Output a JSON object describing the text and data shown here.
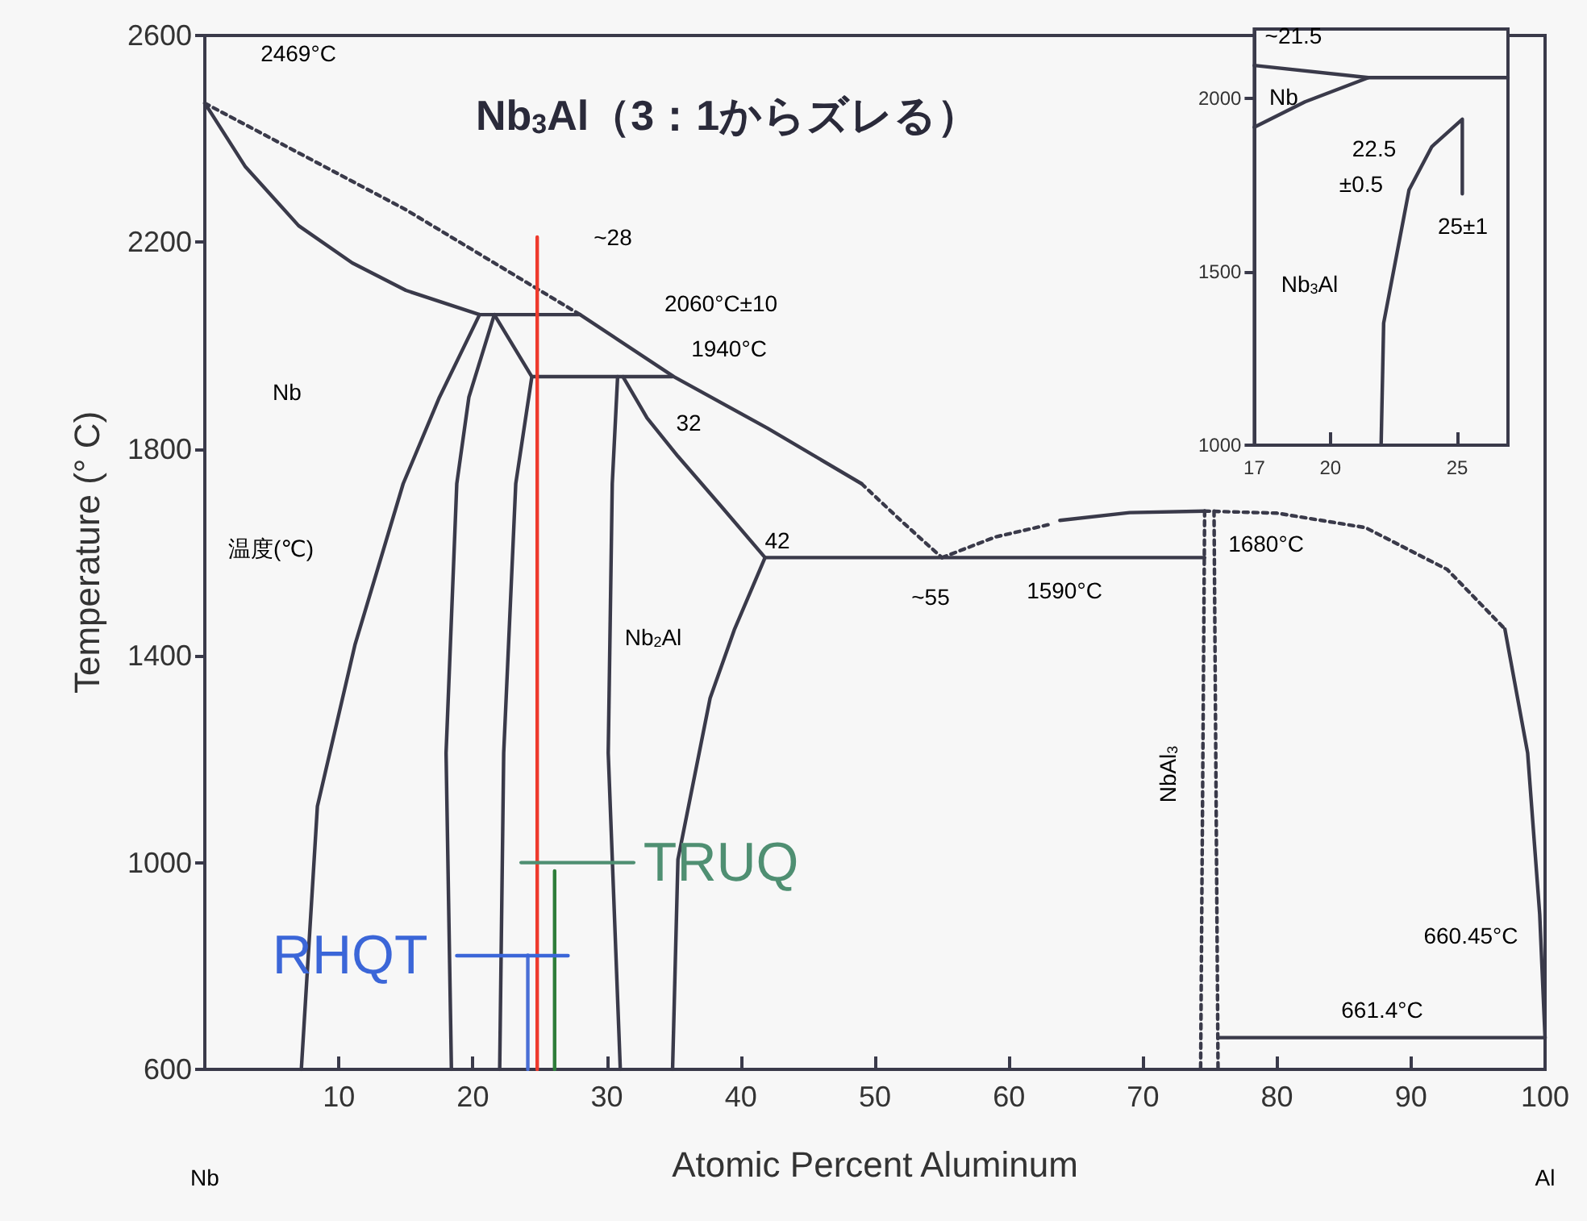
{
  "chart_data": [
    {
      "type": "line",
      "title": "Nb$_{3}$Al（3：1からズレる）",
      "xlabel": "Atomic Percent Aluminum",
      "ylabel": "Temperature (° C)",
      "xlim": [
        0,
        100
      ],
      "ylim": [
        600,
        2600
      ],
      "xticks": [
        10,
        20,
        30,
        40,
        50,
        60,
        70,
        80,
        90,
        100
      ],
      "yticks": [
        600,
        1000,
        1400,
        1800,
        2200,
        2600
      ],
      "grid": false,
      "legend": false,
      "marker": "none",
      "line_style": "solid",
      "series": [
        {
          "color": "#3a3a4a",
          "x": [
            0,
            3,
            7,
            11,
            15,
            20.5,
            28,
            35,
            42,
            49
          ],
          "values": [
            2469,
            2347,
            2232,
            2160,
            2107,
            2060,
            2060,
            1940,
            1840,
            1733
          ]
        },
        {
          "color": "#3a3a4a",
          "line_style": "dotted",
          "x": [
            0,
            15,
            28
          ],
          "values": [
            2469,
            2263,
            2060
          ]
        },
        {
          "color": "#3a3a4a",
          "line_style": "dotted",
          "x": [
            49,
            52,
            55
          ],
          "values": [
            1733,
            1660,
            1590
          ]
        },
        {
          "color": "#3a3a4a",
          "line_style": "dotted",
          "x": [
            55,
            59,
            63
          ],
          "values": [
            1590,
            1630,
            1654
          ]
        },
        {
          "color": "#3a3a4a",
          "x": [
            63.8,
            69,
            74.6
          ],
          "values": [
            1662,
            1677,
            1680
          ]
        },
        {
          "color": "#3a3a4a",
          "line_style": "dotted",
          "x": [
            74.6,
            80,
            86.6,
            92.7,
            97
          ],
          "values": [
            1680,
            1676,
            1648,
            1567,
            1452
          ]
        },
        {
          "color": "#3a3a4a",
          "x": [
            97,
            98.7,
            99.6,
            100
          ],
          "values": [
            1452,
            1212,
            900,
            660.45
          ]
        },
        {
          "color": "#3a3a4a",
          "x": [
            24.4,
            34.9
          ],
          "values": [
            1940,
            1940
          ]
        },
        {
          "color": "#3a3a4a",
          "x": [
            41.8,
            74.6
          ],
          "values": [
            1590,
            1590
          ]
        },
        {
          "color": "#3a3a4a",
          "x": [
            20.5,
            17.5,
            14.8,
            11.2,
            8.4,
            7.2
          ],
          "values": [
            2060,
            1900,
            1733,
            1421,
            1109,
            600
          ]
        },
        {
          "color": "#3a3a4a",
          "x": [
            21.6,
            19.7,
            18.8,
            18,
            18.4
          ],
          "values": [
            2060,
            1900,
            1733,
            1212,
            600
          ]
        },
        {
          "color": "#3a3a4a",
          "x": [
            21.6,
            24.4,
            23.2,
            22.3,
            22
          ],
          "values": [
            2060,
            1940,
            1733,
            1212,
            600
          ]
        },
        {
          "color": "#3a3a4a",
          "x": [
            30.8,
            30.4,
            30.1,
            31
          ],
          "values": [
            1940,
            1733,
            1212,
            600
          ]
        },
        {
          "color": "#3a3a4a",
          "x": [
            31.2,
            33,
            35.3,
            38.5,
            41.8
          ],
          "values": [
            1940,
            1860,
            1786,
            1690,
            1590
          ]
        },
        {
          "color": "#3a3a4a",
          "x": [
            41.8,
            39.5,
            37.7,
            35.3,
            34.9
          ],
          "values": [
            1590,
            1450,
            1318,
            1006,
            600
          ]
        },
        {
          "color": "#3a3a4a",
          "line_style": "dotted",
          "x": [
            74.6,
            74.3
          ],
          "values": [
            1680,
            600
          ]
        },
        {
          "color": "#3a3a4a",
          "line_style": "dotted",
          "x": [
            75.3,
            75.6
          ],
          "values": [
            1680,
            600
          ]
        },
        {
          "color": "#3a3a4a",
          "x": [
            75.6,
            100
          ],
          "values": [
            661.4,
            661.4
          ]
        },
        {
          "color": "#ee3a2c",
          "x": [
            24.8,
            24.8
          ],
          "values": [
            2210,
            600
          ]
        },
        {
          "color": "#2e7d3a",
          "x": [
            26.1,
            26.1
          ],
          "values": [
            600,
            984
          ]
        },
        {
          "color": "#4a6fd6",
          "x": [
            24.1,
            24.1
          ],
          "values": [
            600,
            821
          ]
        },
        {
          "name": "TRUQ",
          "color": "#4f8f72",
          "x": [
            23.6,
            32
          ],
          "values": [
            1000,
            1000
          ]
        },
        {
          "name": "RHQT",
          "color": "#3b66d8",
          "x": [
            27.1,
            18.8
          ],
          "values": [
            820,
            820
          ]
        }
      ],
      "annotations": [
        "2469°C",
        "~28",
        "2060°C±10",
        "1940°C",
        "32",
        "42",
        "~55",
        "1590°C",
        "1680°C",
        "Nb",
        "Nb$_{2}$Al",
        "NbAl$_{3}$",
        "660.45°C",
        "661.4°C",
        "温度(℃)",
        "Nb",
        "Al"
      ]
    },
    {
      "type": "line",
      "xlim": [
        17,
        27
      ],
      "ylim": [
        1000,
        2200
      ],
      "xticks": [
        17,
        20,
        25
      ],
      "yticks": [
        1000,
        1500,
        2000
      ],
      "grid": false,
      "legend": false,
      "marker": "none",
      "line_style": "solid",
      "series": [
        {
          "color": "#3a3a4a",
          "x": [
            17,
            21.5,
            27
          ],
          "values": [
            2095,
            2060,
            2060
          ]
        },
        {
          "color": "#3a3a4a",
          "x": [
            17,
            19,
            21.5
          ],
          "values": [
            1917,
            1990,
            2060
          ]
        },
        {
          "color": "#3a3a4a",
          "x": [
            22,
            22.1,
            23.1,
            24,
            25.2,
            25.2
          ],
          "values": [
            1000,
            1352,
            1736,
            1861,
            1940,
            1725
          ]
        }
      ],
      "annotations": [
        "~21.5",
        "Nb",
        "22.5",
        "±0.5",
        "25±1",
        "Nb$_{3}$Al"
      ]
    }
  ]
}
